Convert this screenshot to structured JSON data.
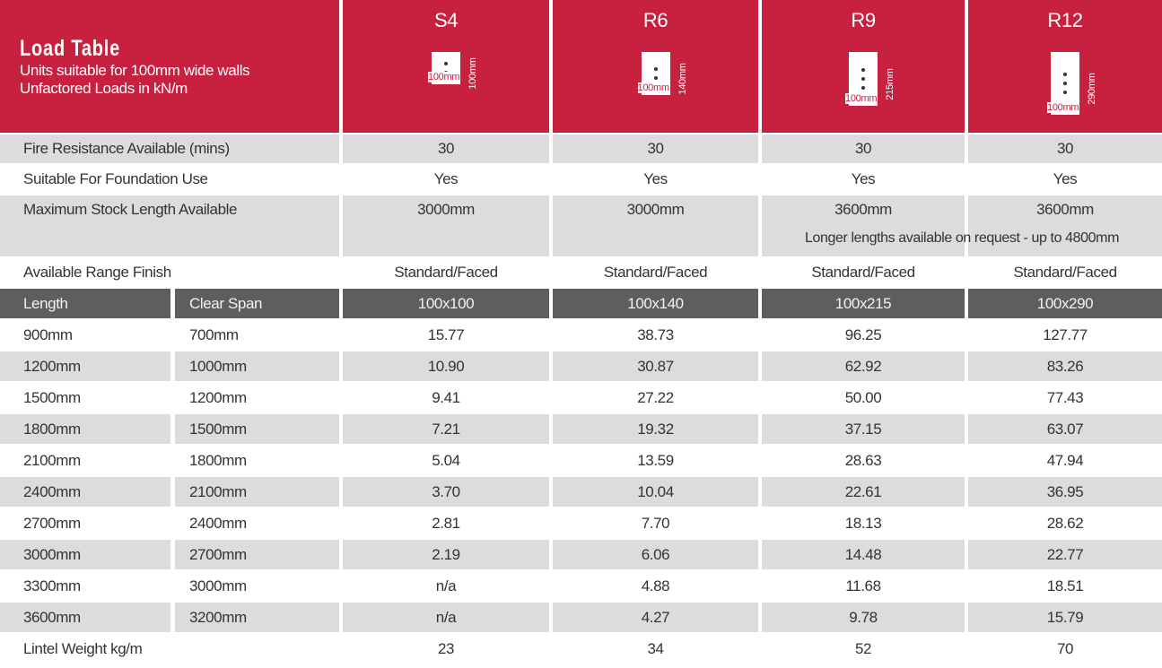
{
  "header": {
    "title": "Load Table",
    "subtitle": [
      "Units suitable for 100mm wide walls",
      "Unfactored Loads in kN/m"
    ]
  },
  "products": [
    {
      "name": "S4",
      "width_label": "100mm",
      "height_label": "100mm"
    },
    {
      "name": "R6",
      "width_label": "100mm",
      "height_label": "140mm"
    },
    {
      "name": "R9",
      "width_label": "100mm",
      "height_label": "215mm"
    },
    {
      "name": "R12",
      "width_label": "100mm",
      "height_label": "290mm"
    }
  ],
  "spec_rows": [
    {
      "label": "Fire Resistance Available (mins)",
      "values": [
        "30",
        "30",
        "30",
        "30"
      ]
    },
    {
      "label": "Suitable For Foundation Use",
      "values": [
        "Yes",
        "Yes",
        "Yes",
        "Yes"
      ]
    },
    {
      "label": "Maximum Stock Length Available",
      "values": [
        "3000mm",
        "3000mm",
        "3600mm",
        "3600mm"
      ],
      "note": "Longer lengths available on request - up to 4800mm"
    },
    {
      "label": "Available Range Finish",
      "values": [
        "Standard/Faced",
        "Standard/Faced",
        "Standard/Faced",
        "Standard/Faced"
      ]
    }
  ],
  "load_table": {
    "columns": [
      "Length",
      "Clear Span"
    ],
    "sizes": [
      "100x100",
      "100x140",
      "100x215",
      "100x290"
    ],
    "rows": [
      {
        "length": "900mm",
        "span": "700mm",
        "values": [
          "15.77",
          "38.73",
          "96.25",
          "127.77"
        ]
      },
      {
        "length": "1200mm",
        "span": "1000mm",
        "values": [
          "10.90",
          "30.87",
          "62.92",
          "83.26"
        ]
      },
      {
        "length": "1500mm",
        "span": "1200mm",
        "values": [
          "9.41",
          "27.22",
          "50.00",
          "77.43"
        ]
      },
      {
        "length": "1800mm",
        "span": "1500mm",
        "values": [
          "7.21",
          "19.32",
          "37.15",
          "63.07"
        ]
      },
      {
        "length": "2100mm",
        "span": "1800mm",
        "values": [
          "5.04",
          "13.59",
          "28.63",
          "47.94"
        ]
      },
      {
        "length": "2400mm",
        "span": "2100mm",
        "values": [
          "3.70",
          "10.04",
          "22.61",
          "36.95"
        ]
      },
      {
        "length": "2700mm",
        "span": "2400mm",
        "values": [
          "2.81",
          "7.70",
          "18.13",
          "28.62"
        ]
      },
      {
        "length": "3000mm",
        "span": "2700mm",
        "values": [
          "2.19",
          "6.06",
          "14.48",
          "22.77"
        ]
      },
      {
        "length": "3300mm",
        "span": "3000mm",
        "values": [
          "n/a",
          "4.88",
          "11.68",
          "18.51"
        ]
      },
      {
        "length": "3600mm",
        "span": "3200mm",
        "values": [
          "n/a",
          "4.27",
          "9.78",
          "15.79"
        ]
      }
    ]
  },
  "footer": {
    "label": "Lintel Weight kg/m",
    "values": [
      "23",
      "34",
      "52",
      "70"
    ]
  }
}
